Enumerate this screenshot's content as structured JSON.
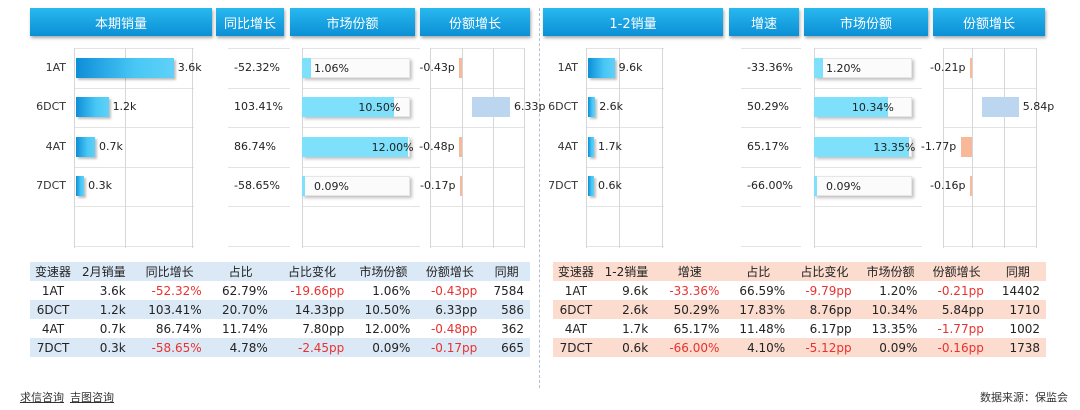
{
  "headers_left": [
    "本期销量",
    "同比增长",
    "市场份额",
    "份额增长"
  ],
  "headers_right": [
    "1-2销量",
    "增速",
    "市场份额",
    "份额增长"
  ],
  "chart_data": [
    {
      "type": "bar",
      "title": "本期销量",
      "categories": [
        "1AT",
        "6DCT",
        "4AT",
        "7DCT"
      ],
      "values": [
        3.6,
        1.2,
        0.7,
        0.3
      ],
      "labels": [
        "3.6k",
        "1.2k",
        "0.7k",
        "0.3k"
      ],
      "xlim": [
        0,
        4.2
      ]
    },
    {
      "type": "table",
      "title": "同比增长",
      "categories": [
        "1AT",
        "6DCT",
        "4AT",
        "7DCT"
      ],
      "labels": [
        "-52.32%",
        "103.41%",
        "86.74%",
        "-58.65%"
      ]
    },
    {
      "type": "bar",
      "title": "市场份额",
      "categories": [
        "1AT",
        "6DCT",
        "4AT",
        "7DCT"
      ],
      "values": [
        1.06,
        10.5,
        12.0,
        0.09
      ],
      "labels": [
        "1.06%",
        "10.50%",
        "12.00%",
        "0.09%"
      ],
      "xlim": [
        0,
        12.5
      ]
    },
    {
      "type": "bar",
      "title": "份额增长",
      "categories": [
        "1AT",
        "6DCT",
        "4AT",
        "7DCT"
      ],
      "values": [
        -0.43,
        6.33,
        -0.48,
        -0.17
      ],
      "labels": [
        "-0.43p",
        "6.33p",
        "-0.48p",
        "-0.17p"
      ],
      "xlim": [
        -1,
        8
      ]
    },
    {
      "type": "bar",
      "title": "1-2销量",
      "categories": [
        "1AT",
        "6DCT",
        "4AT",
        "7DCT"
      ],
      "values": [
        9.6,
        2.6,
        1.7,
        0.6
      ],
      "labels": [
        "9.6k",
        "2.6k",
        "1.7k",
        "0.6k"
      ],
      "xlim": [
        0,
        26
      ]
    },
    {
      "type": "table",
      "title": "增速",
      "categories": [
        "1AT",
        "6DCT",
        "4AT",
        "7DCT"
      ],
      "labels": [
        "-33.36%",
        "50.29%",
        "65.17%",
        "-66.00%"
      ]
    },
    {
      "type": "bar",
      "title": "市场份额",
      "categories": [
        "1AT",
        "6DCT",
        "4AT",
        "7DCT"
      ],
      "values": [
        1.2,
        10.34,
        13.35,
        0.09
      ],
      "labels": [
        "1.20%",
        "10.34%",
        "13.35%",
        "0.09%"
      ],
      "xlim": [
        0,
        14
      ]
    },
    {
      "type": "bar",
      "title": "份额增长",
      "categories": [
        "1AT",
        "6DCT",
        "4AT",
        "7DCT"
      ],
      "values": [
        -0.21,
        5.84,
        -1.77,
        -0.16
      ],
      "labels": [
        "-0.21p",
        "5.84p",
        "-1.77p",
        "-0.16p"
      ],
      "xlim": [
        -2,
        6.5
      ]
    }
  ],
  "table_left": {
    "columns": [
      "变速器",
      "2月销量",
      "同比增长",
      "占比",
      "占比变化",
      "市场份额",
      "份额增长",
      "同期"
    ],
    "rows": [
      [
        "1AT",
        "3.6k",
        "-52.32%",
        "62.79%",
        "-19.66pp",
        "1.06%",
        "-0.43pp",
        "7584"
      ],
      [
        "6DCT",
        "1.2k",
        "103.41%",
        "20.70%",
        "14.33pp",
        "10.50%",
        "6.33pp",
        "586"
      ],
      [
        "4AT",
        "0.7k",
        "86.74%",
        "11.74%",
        "7.80pp",
        "12.00%",
        "-0.48pp",
        "362"
      ],
      [
        "7DCT",
        "0.3k",
        "-58.65%",
        "4.78%",
        "-2.45pp",
        "0.09%",
        "-0.17pp",
        "665"
      ]
    ]
  },
  "table_right": {
    "columns": [
      "变速器",
      "1-2销量",
      "增速",
      "占比",
      "占比变化",
      "市场份额",
      "份额增长",
      "同期"
    ],
    "rows": [
      [
        "1AT",
        "9.6k",
        "-33.36%",
        "66.59%",
        "-9.79pp",
        "1.20%",
        "-0.21pp",
        "14402"
      ],
      [
        "6DCT",
        "2.6k",
        "50.29%",
        "17.83%",
        "8.76pp",
        "10.34%",
        "5.84pp",
        "1710"
      ],
      [
        "4AT",
        "1.7k",
        "65.17%",
        "11.48%",
        "6.17pp",
        "13.35%",
        "-1.77pp",
        "1002"
      ],
      [
        "7DCT",
        "0.6k",
        "-66.00%",
        "4.10%",
        "-5.12pp",
        "0.09%",
        "-0.16pp",
        "1738"
      ]
    ]
  },
  "colors": {
    "header": "#0b8fd6",
    "negative": "#e8322f",
    "left_table_band": "#dbe9f7",
    "right_table_band": "#fbdccf",
    "positive_share": "#bcd6ef",
    "negative_share": "#f7b99a"
  },
  "footer": {
    "links": [
      "求信咨询",
      "吉图咨询"
    ],
    "source": "数据来源：保监会"
  }
}
